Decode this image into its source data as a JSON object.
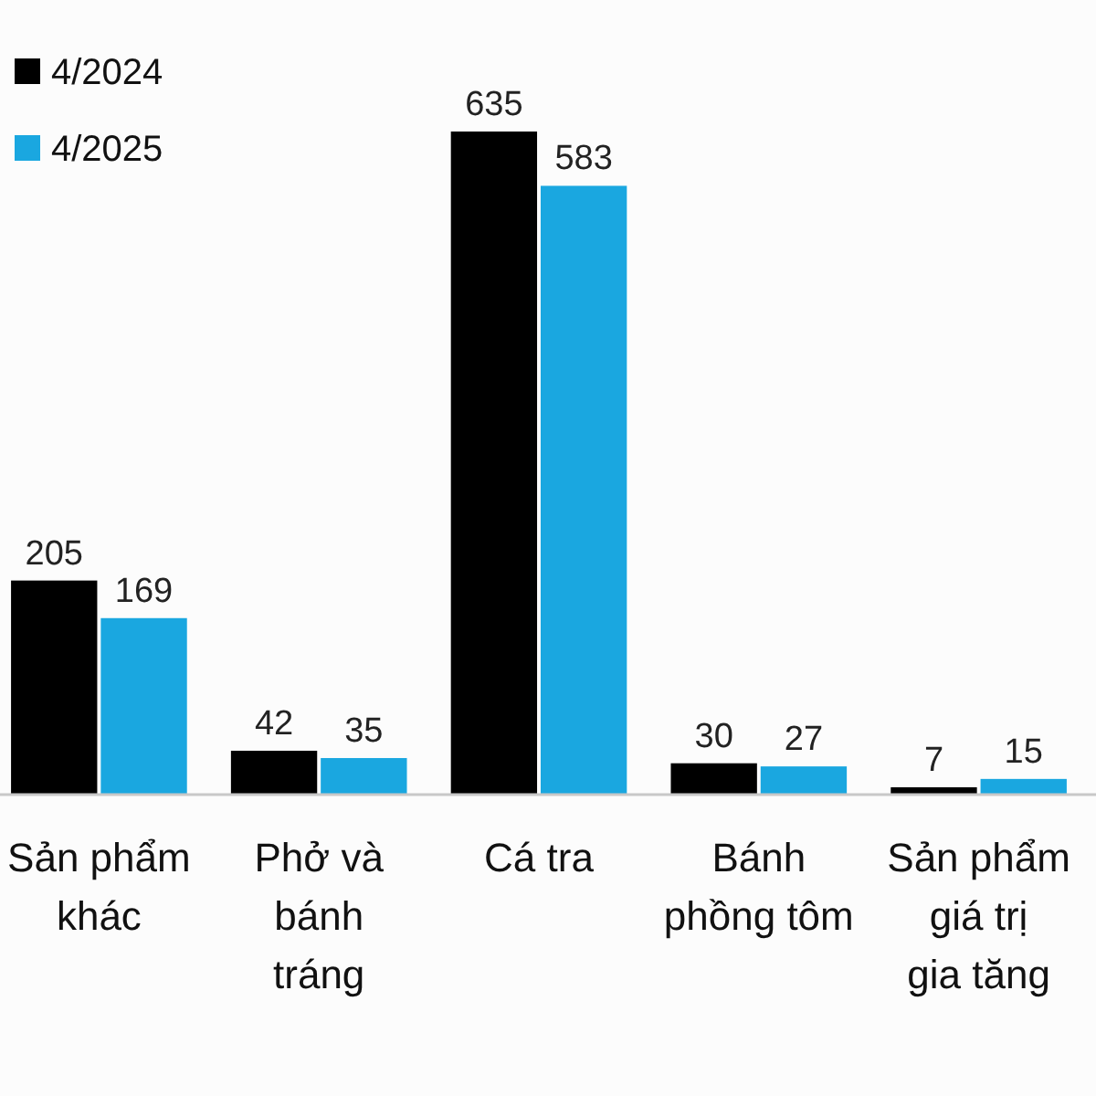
{
  "chart_data": {
    "type": "bar",
    "categories": [
      "Sản phẩm khác",
      "Phở và bánh tráng",
      "Cá tra",
      "Bánh phồng tôm",
      "Sản phẩm giá trị gia tăng"
    ],
    "series": [
      {
        "name": "4/2024",
        "color": "#000000",
        "values": [
          205,
          42,
          635,
          30,
          7
        ]
      },
      {
        "name": "4/2025",
        "color": "#1aa7e0",
        "values": [
          169,
          35,
          583,
          27,
          15
        ]
      }
    ],
    "data_labels": true,
    "legend": "top left"
  }
}
